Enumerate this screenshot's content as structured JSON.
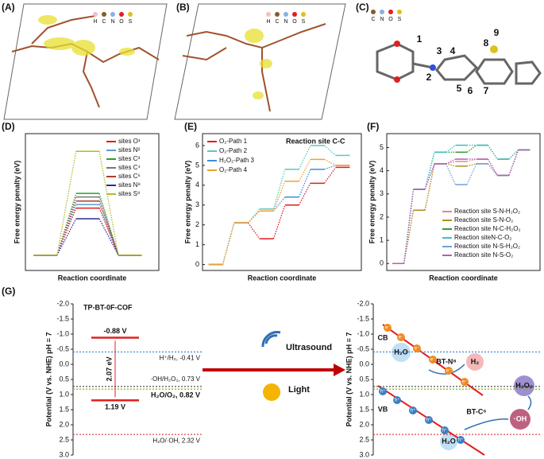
{
  "panel_labels": [
    "(A)",
    "(B)",
    "(C)",
    "(D)",
    "(E)",
    "(F)",
    "(G)"
  ],
  "atom_legend": [
    "H",
    "C",
    "N",
    "O",
    "S"
  ],
  "atom_legend_c": [
    "C",
    "N",
    "O",
    "S"
  ],
  "site_numbers": [
    "1",
    "2",
    "3",
    "4",
    "5",
    "6",
    "7",
    "8",
    "9"
  ],
  "chart_data": [
    {
      "type": "line",
      "y_label": "Free energy penalty (eV)",
      "x_label": "Reaction coordinate",
      "ylim": [
        -0.3,
        2.4
      ],
      "series": [
        {
          "name": "sites O¹",
          "color": "#e41a1c",
          "values": [
            0,
            0.93,
            0
          ]
        },
        {
          "name": "sites N²",
          "color": "#5b9bd5",
          "values": [
            0,
            1.0,
            0
          ]
        },
        {
          "name": "sites C³",
          "color": "#2ca02c",
          "values": [
            0,
            1.22,
            0
          ]
        },
        {
          "name": "sites C⁴",
          "color": "#777777",
          "values": [
            0,
            1.15,
            0
          ]
        },
        {
          "name": "sites C⁶",
          "color": "#b03a2e",
          "values": [
            0,
            1.07,
            0
          ]
        },
        {
          "name": "sites N⁸",
          "color": "#2b2b9e",
          "values": [
            0,
            0.72,
            0
          ]
        },
        {
          "name": "sites S⁹",
          "color": "#b5b82a",
          "values": [
            0,
            2.05,
            0
          ]
        }
      ]
    },
    {
      "type": "line",
      "title": "Reaction site C-C",
      "y_label": "Free energy penalty (eV)",
      "x_label": "Reaction coordinate",
      "ylim": [
        -0.3,
        6.6
      ],
      "yticks": [
        0,
        1,
        2,
        3,
        4,
        5,
        6
      ],
      "series": [
        {
          "name": "O₂-Path 1",
          "color": "#e41a1c",
          "values": [
            0,
            2.1,
            1.3,
            3.0,
            4.1,
            4.9
          ]
        },
        {
          "name": "O₂-Path 2",
          "color": "#5bc8c0",
          "values": [
            0,
            2.1,
            2.8,
            4.8,
            6.0,
            5.5
          ]
        },
        {
          "name": "H₂O₂-Path 3",
          "color": "#3b8fd9",
          "values": [
            0,
            2.1,
            2.7,
            3.4,
            4.8,
            5.0
          ]
        },
        {
          "name": "O₂-Path 4",
          "color": "#f0a030",
          "values": [
            0,
            2.1,
            2.7,
            4.2,
            5.3,
            5.0
          ]
        }
      ]
    },
    {
      "type": "line",
      "y_label": "Free energy penalty (eV)",
      "x_label": "Reaction coordinate",
      "ylim": [
        -0.3,
        5.6
      ],
      "yticks": [
        0,
        1,
        2,
        3,
        4,
        5
      ],
      "series": [
        {
          "name": "Reaction site S-N-H₂O₂",
          "color": "#f07f8f",
          "values": [
            0,
            2.3,
            4.3,
            4.4,
            4.5,
            3.8,
            4.9
          ]
        },
        {
          "name": "Reaction site S-N-O₂",
          "color": "#b09020",
          "values": [
            0,
            2.3,
            4.3,
            4.2,
            4.3,
            3.8,
            4.9
          ]
        },
        {
          "name": "Reaction site N-C-H₂O₂",
          "color": "#2ca02c",
          "values": [
            0,
            3.2,
            4.8,
            4.8,
            5.1,
            4.5,
            4.9
          ]
        },
        {
          "name": "Reaction siteN-C-O₂",
          "color": "#3cc0c0",
          "values": [
            0,
            3.2,
            4.8,
            5.1,
            5.1,
            4.5,
            4.9
          ]
        },
        {
          "name": "Reaction site N-S-H₂O₂",
          "color": "#6fa0e0",
          "values": [
            0,
            3.2,
            4.3,
            3.4,
            4.3,
            3.8,
            4.9
          ]
        },
        {
          "name": "Reaction site N-S-O₂",
          "color": "#b060b0",
          "values": [
            0,
            3.2,
            4.3,
            4.5,
            4.5,
            3.8,
            4.9
          ]
        }
      ]
    }
  ],
  "g": {
    "title": "TP-BT-0F-COF",
    "y_label": "Potential (V vs. NHE) pH = 7",
    "ylim": [
      -2,
      3
    ],
    "yticks": [
      {
        "value": -2,
        "label": "-2.0"
      },
      -1.5,
      {
        "value": -1,
        "label": "-1.0"
      },
      -0.5,
      {
        "value": 0,
        "label": "0.0"
      },
      0.5,
      {
        "value": 1,
        "label": "1.0"
      },
      1.5,
      {
        "value": 2,
        "label": "2.0"
      },
      2.5,
      {
        "value": 3,
        "label": "3.0"
      }
    ],
    "cb": {
      "value": -0.88,
      "label": "-0.88 V"
    },
    "vb": {
      "value": 1.19,
      "label": "1.19 V"
    },
    "gap_label": "2.07 eV",
    "levels": [
      {
        "value": -0.41,
        "label": "H⁺/H₂, -0.41 V",
        "color": "#4a90d9"
      },
      {
        "value": 0.73,
        "label": "·OH/H₂O₂, 0.73 V",
        "color": "#555555"
      },
      {
        "value": 0.82,
        "label": "H₂O/O₂, 0.82 V",
        "color": "#7cb518"
      },
      {
        "value": 2.32,
        "label": "H₂O/·OH, 2.32 V",
        "color": "#e0474c"
      }
    ],
    "ultrasound": "Ultrasound",
    "light": "Light",
    "cb_text": "CB",
    "vb_text": "VB",
    "h2o": "H₂O",
    "bt_n": "BT-N⁸",
    "h2": "H₂",
    "h2o2": "H₂O₂",
    "bt_c": "BT-C⁶",
    "oh": "·OH",
    "electron": "e⁻",
    "hole": "h⁺"
  }
}
